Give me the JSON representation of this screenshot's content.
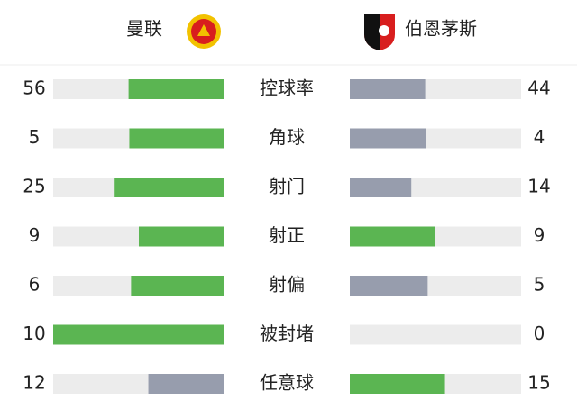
{
  "header": {
    "home": "曼联",
    "away": "伯恩茅斯"
  },
  "stats": [
    {
      "label": "控球率",
      "home": 56,
      "away": 44
    },
    {
      "label": "角球",
      "home": 5,
      "away": 4
    },
    {
      "label": "射门",
      "home": 25,
      "away": 14
    },
    {
      "label": "射正",
      "home": 9,
      "away": 9
    },
    {
      "label": "射偏",
      "home": 6,
      "away": 5
    },
    {
      "label": "被封堵",
      "home": 10,
      "away": 0
    },
    {
      "label": "任意球",
      "home": 12,
      "away": 15
    }
  ]
}
